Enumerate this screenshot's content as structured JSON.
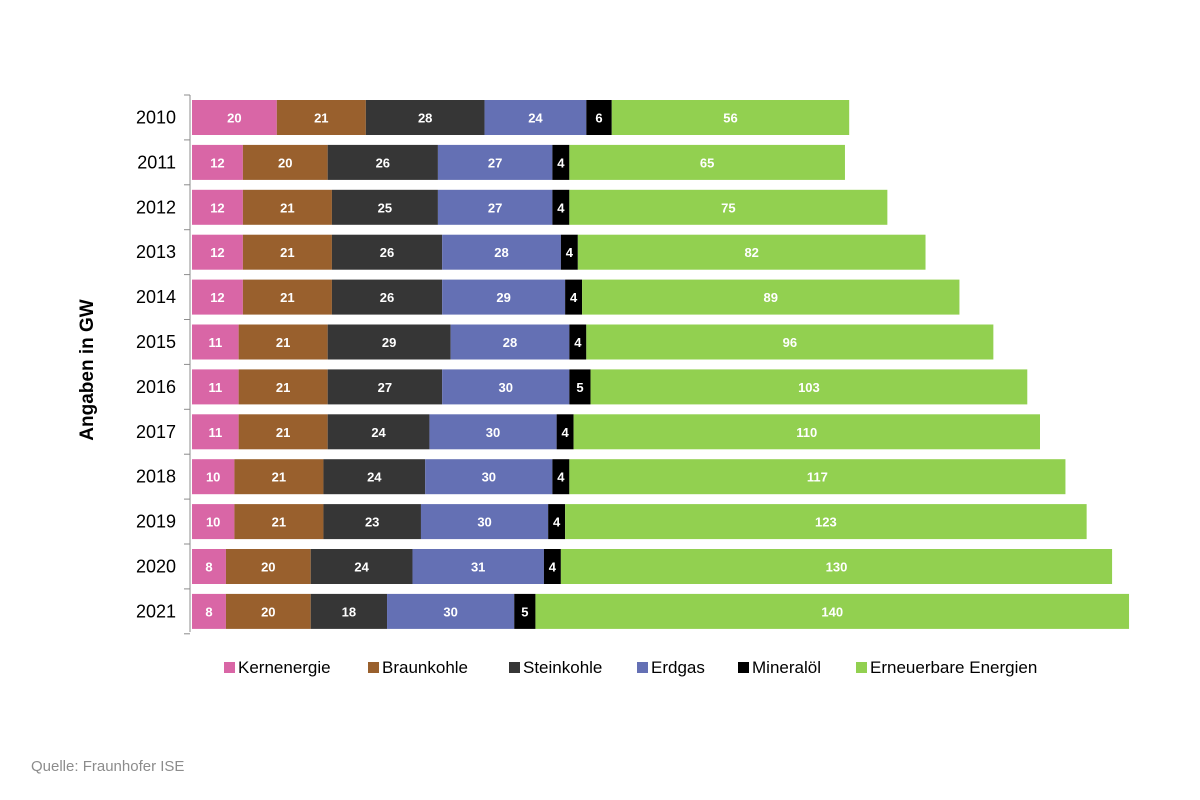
{
  "chart_data": {
    "type": "bar",
    "orientation": "horizontal",
    "stacked": true,
    "ylabel": "Angaben in GW",
    "categories": [
      "2010",
      "2011",
      "2012",
      "2013",
      "2014",
      "2015",
      "2016",
      "2017",
      "2018",
      "2019",
      "2020",
      "2021"
    ],
    "series": [
      {
        "name": "Kernenergie",
        "color": "#d966a6",
        "values": [
          20,
          12,
          12,
          12,
          12,
          11,
          11,
          11,
          10,
          10,
          8,
          8
        ]
      },
      {
        "name": "Braunkohle",
        "color": "#99602d",
        "values": [
          21,
          20,
          21,
          21,
          21,
          21,
          21,
          21,
          21,
          21,
          20,
          20
        ]
      },
      {
        "name": "Steinkohle",
        "color": "#363636",
        "values": [
          28,
          26,
          25,
          26,
          26,
          29,
          27,
          24,
          24,
          23,
          24,
          18
        ]
      },
      {
        "name": "Erdgas",
        "color": "#6470b4",
        "values": [
          24,
          27,
          27,
          28,
          29,
          28,
          30,
          30,
          30,
          30,
          31,
          30
        ]
      },
      {
        "name": "Mineralöl",
        "color": "#000000",
        "values": [
          6,
          4,
          4,
          4,
          4,
          4,
          5,
          4,
          4,
          4,
          4,
          5
        ]
      },
      {
        "name": "Erneuerbare Energien",
        "color": "#92d050",
        "values": [
          56,
          65,
          75,
          82,
          89,
          96,
          103,
          110,
          117,
          123,
          130,
          140
        ]
      }
    ],
    "legend_position": "bottom",
    "grid": false
  },
  "source": "Quelle: Fraunhofer ISE"
}
